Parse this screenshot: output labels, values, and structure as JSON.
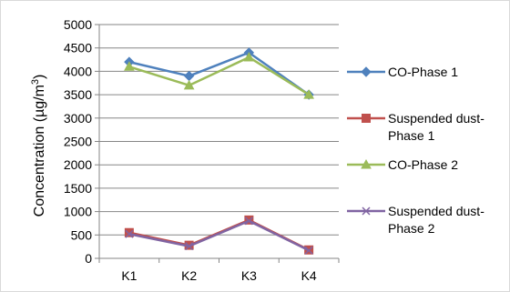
{
  "chart_data": {
    "type": "line",
    "categories": [
      "K1",
      "K2",
      "K3",
      "K4"
    ],
    "ylabel": {
      "main": "Concentration (µg/m",
      "sup": "3",
      "end": ")"
    },
    "ylim": [
      0,
      5000
    ],
    "yticks": [
      "0",
      "500",
      "1000",
      "1500",
      "2000",
      "2500",
      "3000",
      "3500",
      "4000",
      "4500",
      "5000"
    ],
    "grid": "horizontal",
    "legend_position": "right",
    "series": [
      {
        "name_lines": [
          "CO-Phase 1"
        ],
        "color": "#4f81bd",
        "marker": "diamond",
        "values": [
          4200,
          3900,
          4400,
          3500
        ]
      },
      {
        "name_lines": [
          "Suspended dust-",
          "Phase 1"
        ],
        "color": "#c0504d",
        "marker": "square",
        "values": [
          550,
          280,
          820,
          180
        ]
      },
      {
        "name_lines": [
          "CO-Phase 2"
        ],
        "color": "#9bbb59",
        "marker": "triangle",
        "values": [
          4100,
          3700,
          4300,
          3500
        ]
      },
      {
        "name_lines": [
          "Suspended dust-",
          "Phase 2"
        ],
        "color": "#8064a2",
        "marker": "x",
        "values": [
          520,
          260,
          800,
          170
        ]
      }
    ]
  }
}
